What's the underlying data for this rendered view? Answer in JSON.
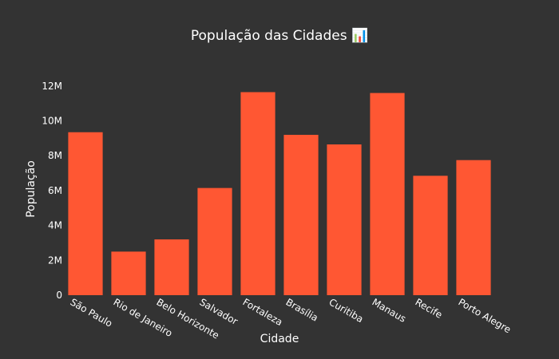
{
  "chart_data": {
    "type": "bar",
    "title": "População das Cidades 📊",
    "xlabel": "Cidade",
    "ylabel": "População",
    "categories": [
      "São Paulo",
      "Rio de Janeiro",
      "Belo Horizonte",
      "Salvador",
      "Fortaleza",
      "Brasília",
      "Curitiba",
      "Manaus",
      "Recife",
      "Porto Alegre"
    ],
    "values": [
      9350000,
      2500000,
      3200000,
      6150000,
      11650000,
      9200000,
      8650000,
      11600000,
      6850000,
      7750000
    ],
    "ylim": [
      0,
      13000000
    ],
    "yticks": [
      0,
      2000000,
      4000000,
      6000000,
      8000000,
      10000000,
      12000000
    ],
    "ytick_labels": [
      "0",
      "2M",
      "4M",
      "6M",
      "8M",
      "10M",
      "12M"
    ],
    "grid": false,
    "colors": {
      "bar": "#FF5733",
      "background": "#333333",
      "text": "#ffffff"
    }
  }
}
